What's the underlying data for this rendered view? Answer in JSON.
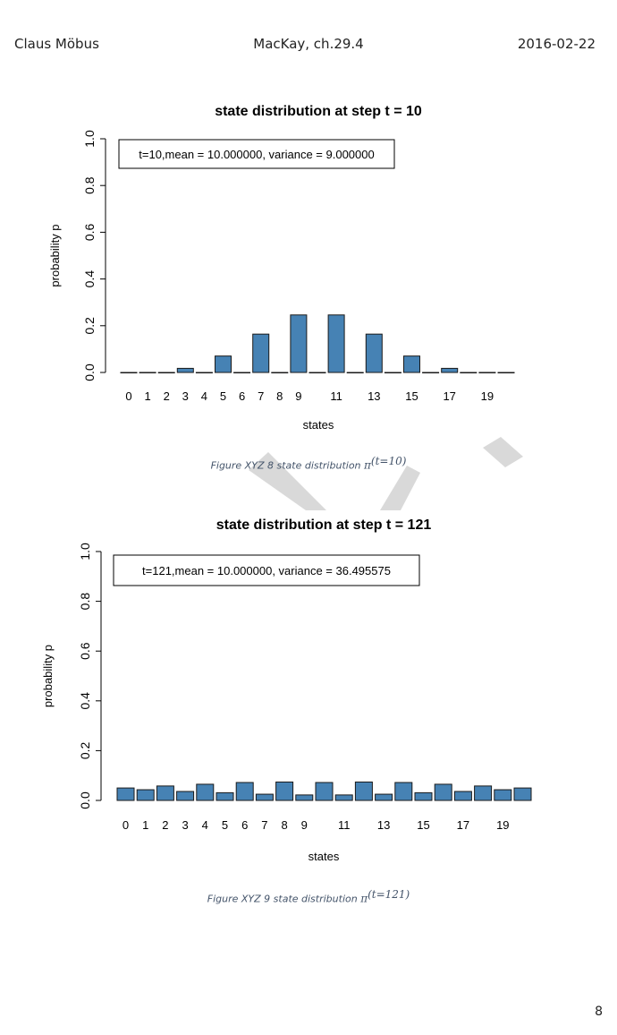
{
  "header": {
    "left": "Claus Möbus",
    "center": "MacKay, ch.29.4",
    "right": "2016-02-22"
  },
  "page_number": "8",
  "captions": [
    {
      "prefix": "Figure XYZ 8  state distribution ",
      "symbol": "π",
      "superscript": "(t=10)"
    },
    {
      "prefix": "Figure XYZ 9  state distribution ",
      "symbol": "π",
      "superscript": "(t=121)"
    }
  ],
  "colors": {
    "bar": "#4682b4",
    "bar_stroke": "#1a1a1a",
    "watermark": "#d9d9d9",
    "caption": "#44546a"
  },
  "chart_data": [
    {
      "type": "bar",
      "title": "state distribution at step t = 10",
      "legend_text": "t=10,mean = 10.000000, variance = 9.000000",
      "legend_position": "top-left",
      "xlabel": "states",
      "ylabel": "probability p",
      "ylim": [
        0,
        1
      ],
      "yticks": [
        "0.0",
        "0.2",
        "0.4",
        "0.6",
        "0.8",
        "1.0"
      ],
      "categories": [
        "0",
        "1",
        "2",
        "3",
        "4",
        "5",
        "6",
        "7",
        "8",
        "9",
        "10",
        "11",
        "12",
        "13",
        "14",
        "15",
        "16",
        "17",
        "18",
        "19",
        "20"
      ],
      "xtick_labels": [
        "0",
        "1",
        "2",
        "3",
        "4",
        "5",
        "6",
        "7",
        "8",
        "9",
        "11",
        "13",
        "15",
        "17",
        "19"
      ],
      "values": [
        0.0,
        0.0002,
        0.0,
        0.0176,
        0.0,
        0.0703,
        0.0,
        0.1641,
        0.0,
        0.2461,
        0.0,
        0.2461,
        0.0,
        0.1641,
        0.0,
        0.0703,
        0.0,
        0.0176,
        0.0,
        0.0002,
        0.0
      ]
    },
    {
      "type": "bar",
      "title": "state distribution at step t = 121",
      "legend_text": "t=121,mean = 10.000000, variance = 36.495575",
      "legend_position": "top-left",
      "xlabel": "states",
      "ylabel": "probability p",
      "ylim": [
        0,
        1
      ],
      "yticks": [
        "0.0",
        "0.2",
        "0.4",
        "0.6",
        "0.8",
        "1.0"
      ],
      "categories": [
        "0",
        "1",
        "2",
        "3",
        "4",
        "5",
        "6",
        "7",
        "8",
        "9",
        "10",
        "11",
        "12",
        "13",
        "14",
        "15",
        "16",
        "17",
        "18",
        "19",
        "20"
      ],
      "xtick_labels": [
        "0",
        "1",
        "2",
        "3",
        "4",
        "5",
        "6",
        "7",
        "8",
        "9",
        "11",
        "13",
        "15",
        "17",
        "19"
      ],
      "values": [
        0.05,
        0.043,
        0.058,
        0.036,
        0.065,
        0.031,
        0.072,
        0.025,
        0.074,
        0.022,
        0.072,
        0.022,
        0.074,
        0.025,
        0.072,
        0.031,
        0.065,
        0.036,
        0.058,
        0.043,
        0.05
      ]
    }
  ]
}
